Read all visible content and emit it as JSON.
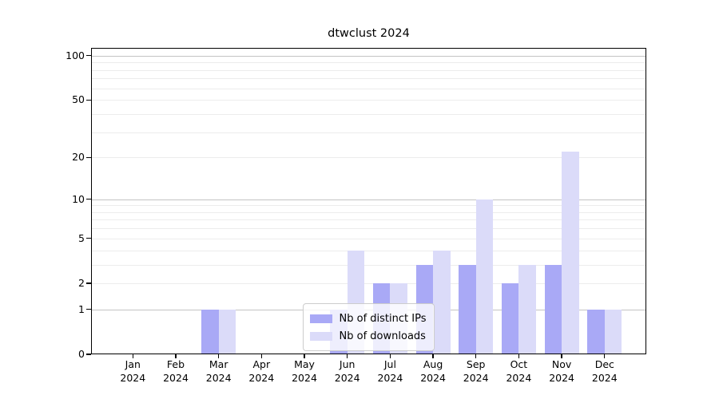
{
  "figure": {
    "title": "dtwclust 2024",
    "background_color": "#ffffff"
  },
  "chart_data": {
    "type": "bar",
    "title": "dtwclust 2024",
    "categories": [
      "Jan 2024",
      "Feb 2024",
      "Mar 2024",
      "Apr 2024",
      "May 2024",
      "Jun 2024",
      "Jul 2024",
      "Aug 2024",
      "Sep 2024",
      "Oct 2024",
      "Nov 2024",
      "Dec 2024"
    ],
    "series": [
      {
        "name": "Nb of distinct IPs",
        "color": "#a9a9f6",
        "values": [
          0,
          0,
          1,
          0,
          0,
          1,
          2,
          3,
          3,
          2,
          3,
          1
        ]
      },
      {
        "name": "Nb of downloads",
        "color": "#dbdbf9",
        "values": [
          0,
          0,
          1,
          0,
          0,
          4,
          2,
          4,
          10,
          3,
          22,
          1
        ]
      }
    ],
    "xlabel": "",
    "ylabel": "",
    "y_axis": {
      "scale": "log1p",
      "ticks": [
        0,
        1,
        2,
        5,
        10,
        20,
        50,
        100
      ],
      "major_gridlines": [
        1,
        10,
        100
      ],
      "minor_gridlines": [
        2,
        3,
        4,
        5,
        6,
        7,
        8,
        9,
        20,
        30,
        40,
        50,
        60,
        70,
        80,
        90
      ],
      "ylim": [
        0,
        113
      ]
    },
    "legend": {
      "position": "lower center",
      "entries": [
        "Nb of distinct IPs",
        "Nb of downloads"
      ]
    },
    "grid": true,
    "colors": {
      "major_grid": "#c3c3c3",
      "minor_grid": "#ececec",
      "spine": "#000000",
      "text": "#000000"
    }
  }
}
